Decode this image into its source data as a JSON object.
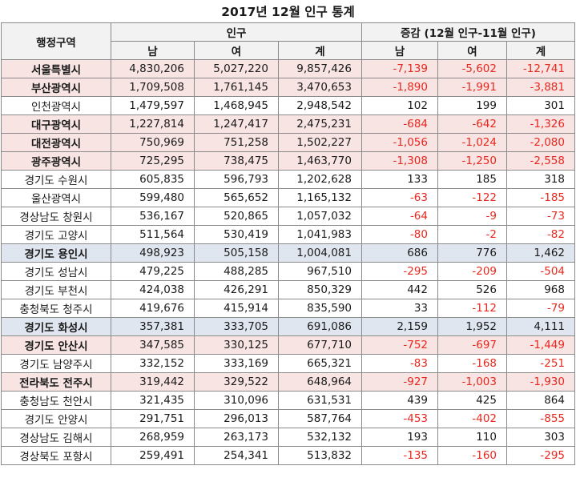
{
  "title": "2017년 12월 인구 통계",
  "headers": {
    "region": "행정구역",
    "population": "인구",
    "change": "증감 (12월 인구-11월 인구)",
    "sub": [
      "남",
      "여",
      "계",
      "남",
      "여",
      "계"
    ]
  },
  "highlight_colors": {
    "pink": "#f7e4e3",
    "blue": "#dfe6f0",
    "negative_text": "#e8281e"
  },
  "rows": [
    {
      "region": "서울특별시",
      "male": "4,830,206",
      "female": "5,027,220",
      "total": "9,857,426",
      "d_male": "-7,139",
      "d_female": "-5,602",
      "d_total": "-12,741",
      "hl": "pink"
    },
    {
      "region": "부산광역시",
      "male": "1,709,508",
      "female": "1,761,145",
      "total": "3,470,653",
      "d_male": "-1,890",
      "d_female": "-1,991",
      "d_total": "-3,881",
      "hl": "pink"
    },
    {
      "region": "인천광역시",
      "male": "1,479,597",
      "female": "1,468,945",
      "total": "2,948,542",
      "d_male": "102",
      "d_female": "199",
      "d_total": "301",
      "hl": ""
    },
    {
      "region": "대구광역시",
      "male": "1,227,814",
      "female": "1,247,417",
      "total": "2,475,231",
      "d_male": "-684",
      "d_female": "-642",
      "d_total": "-1,326",
      "hl": "pink"
    },
    {
      "region": "대전광역시",
      "male": "750,969",
      "female": "751,258",
      "total": "1,502,227",
      "d_male": "-1,056",
      "d_female": "-1,024",
      "d_total": "-2,080",
      "hl": "pink"
    },
    {
      "region": "광주광역시",
      "male": "725,295",
      "female": "738,475",
      "total": "1,463,770",
      "d_male": "-1,308",
      "d_female": "-1,250",
      "d_total": "-2,558",
      "hl": "pink"
    },
    {
      "region": "경기도 수원시",
      "male": "605,835",
      "female": "596,793",
      "total": "1,202,628",
      "d_male": "133",
      "d_female": "185",
      "d_total": "318",
      "hl": ""
    },
    {
      "region": "울산광역시",
      "male": "599,480",
      "female": "565,652",
      "total": "1,165,132",
      "d_male": "-63",
      "d_female": "-122",
      "d_total": "-185",
      "hl": ""
    },
    {
      "region": "경상남도 창원시",
      "male": "536,167",
      "female": "520,865",
      "total": "1,057,032",
      "d_male": "-64",
      "d_female": "-9",
      "d_total": "-73",
      "hl": ""
    },
    {
      "region": "경기도 고양시",
      "male": "511,564",
      "female": "530,419",
      "total": "1,041,983",
      "d_male": "-80",
      "d_female": "-2",
      "d_total": "-82",
      "hl": ""
    },
    {
      "region": "경기도 용인시",
      "male": "498,923",
      "female": "505,158",
      "total": "1,004,081",
      "d_male": "686",
      "d_female": "776",
      "d_total": "1,462",
      "hl": "blue"
    },
    {
      "region": "경기도 성남시",
      "male": "479,225",
      "female": "488,285",
      "total": "967,510",
      "d_male": "-295",
      "d_female": "-209",
      "d_total": "-504",
      "hl": ""
    },
    {
      "region": "경기도 부천시",
      "male": "424,038",
      "female": "426,291",
      "total": "850,329",
      "d_male": "442",
      "d_female": "526",
      "d_total": "968",
      "hl": ""
    },
    {
      "region": "충청북도 청주시",
      "male": "419,676",
      "female": "415,914",
      "total": "835,590",
      "d_male": "33",
      "d_female": "-112",
      "d_total": "-79",
      "hl": ""
    },
    {
      "region": "경기도 화성시",
      "male": "357,381",
      "female": "333,705",
      "total": "691,086",
      "d_male": "2,159",
      "d_female": "1,952",
      "d_total": "4,111",
      "hl": "blue"
    },
    {
      "region": "경기도 안산시",
      "male": "347,585",
      "female": "330,125",
      "total": "677,710",
      "d_male": "-752",
      "d_female": "-697",
      "d_total": "-1,449",
      "hl": "pink"
    },
    {
      "region": "경기도 남양주시",
      "male": "332,152",
      "female": "333,169",
      "total": "665,321",
      "d_male": "-83",
      "d_female": "-168",
      "d_total": "-251",
      "hl": ""
    },
    {
      "region": "전라북도 전주시",
      "male": "319,442",
      "female": "329,522",
      "total": "648,964",
      "d_male": "-927",
      "d_female": "-1,003",
      "d_total": "-1,930",
      "hl": "pink"
    },
    {
      "region": "충청남도 천안시",
      "male": "321,435",
      "female": "310,096",
      "total": "631,531",
      "d_male": "439",
      "d_female": "425",
      "d_total": "864",
      "hl": ""
    },
    {
      "region": "경기도 안양시",
      "male": "291,751",
      "female": "296,013",
      "total": "587,764",
      "d_male": "-453",
      "d_female": "-402",
      "d_total": "-855",
      "hl": ""
    },
    {
      "region": "경상남도 김해시",
      "male": "268,959",
      "female": "263,173",
      "total": "532,132",
      "d_male": "193",
      "d_female": "110",
      "d_total": "303",
      "hl": ""
    },
    {
      "region": "경상북도 포항시",
      "male": "259,491",
      "female": "254,341",
      "total": "513,832",
      "d_male": "-135",
      "d_female": "-160",
      "d_total": "-295",
      "hl": ""
    }
  ]
}
